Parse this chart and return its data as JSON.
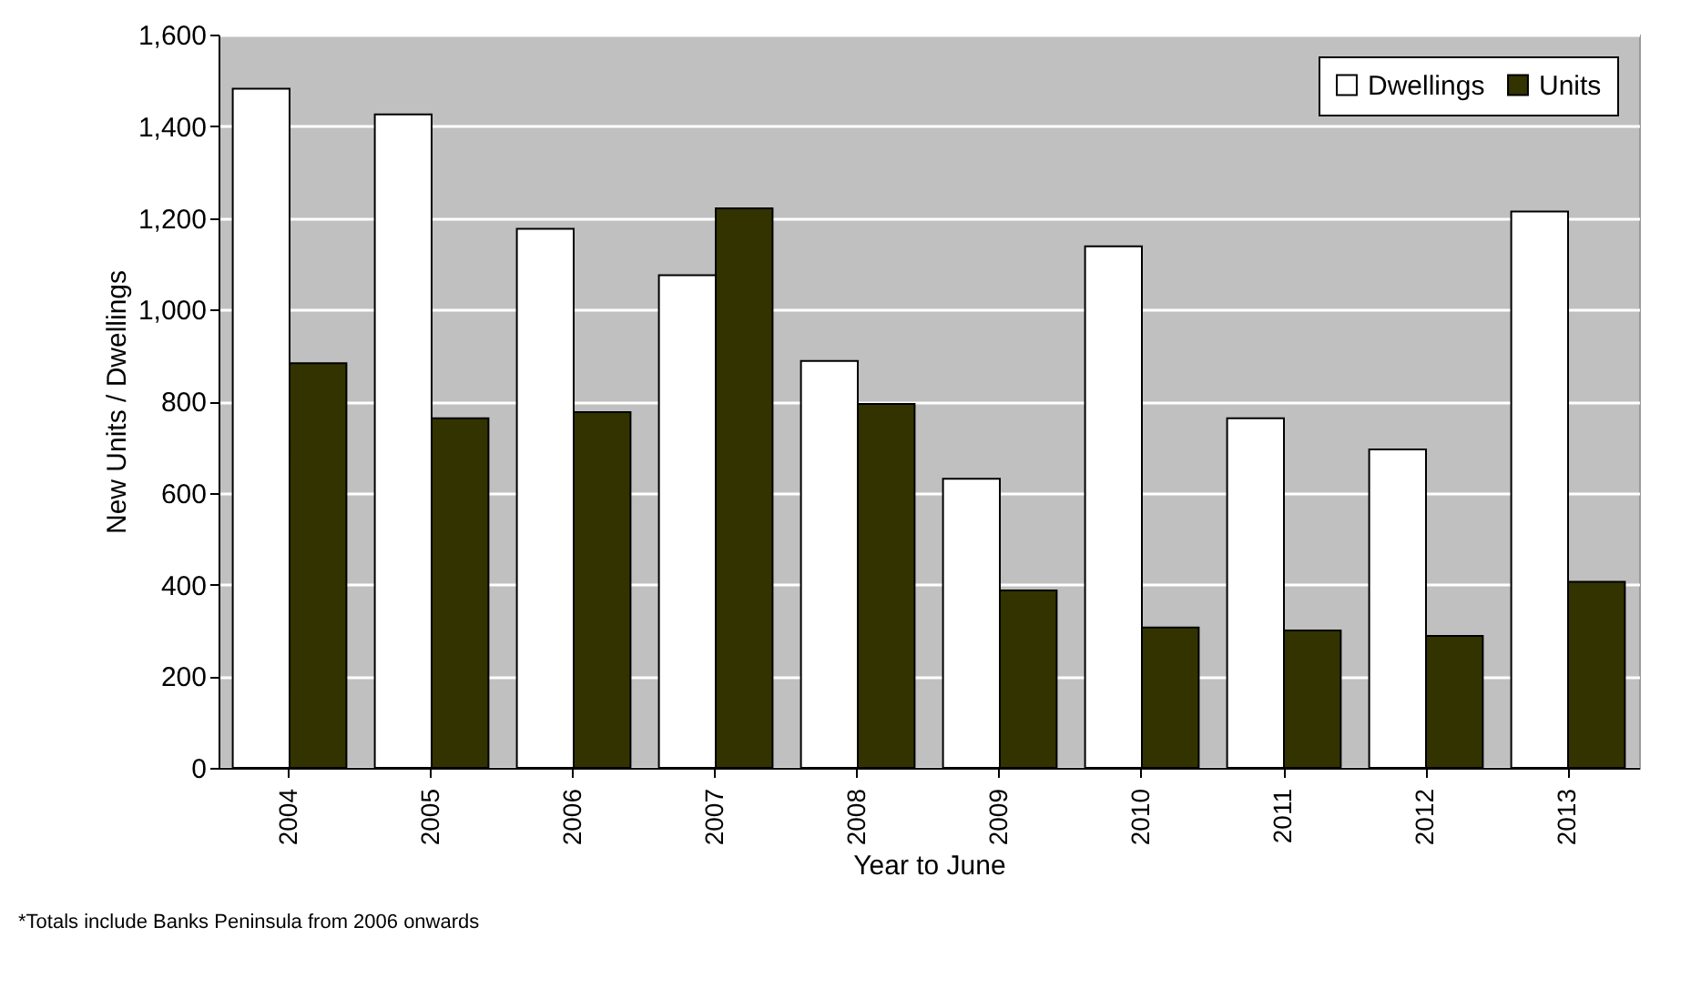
{
  "chart_data": {
    "type": "bar",
    "categories": [
      "2004",
      "2005",
      "2006",
      "2007",
      "2008",
      "2009",
      "2010",
      "2011",
      "2012",
      "2013"
    ],
    "series": [
      {
        "name": "Dwellings",
        "color": "#ffffff",
        "values": [
          1482,
          1426,
          1176,
          1075,
          888,
          631,
          1138,
          763,
          695,
          1214
        ]
      },
      {
        "name": "Units",
        "color": "#333300",
        "values": [
          883,
          763,
          776,
          1221,
          794,
          387,
          306,
          300,
          288,
          406
        ]
      }
    ],
    "xlabel": "Year to June",
    "ylabel": "New Units / Dwellings",
    "ylim": [
      0,
      1600
    ],
    "yticks": [
      0,
      200,
      400,
      600,
      800,
      {
        "value": 1000,
        "label": "1,000"
      },
      {
        "value": 1200,
        "label": "1,200"
      },
      {
        "value": 1400,
        "label": "1,400"
      },
      {
        "value": 1600,
        "label": "1,600"
      }
    ],
    "grid": "y",
    "legend": "top right",
    "annotations": [
      "*Totals include Banks Peninsula from 2006 onwards"
    ]
  }
}
